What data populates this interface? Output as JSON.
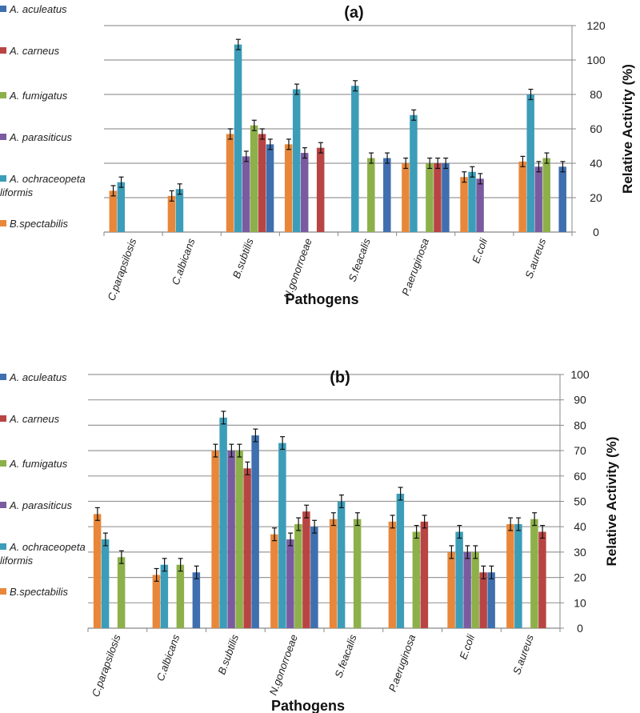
{
  "chart_data": [
    {
      "type": "bar",
      "title": "(a)",
      "xlabel": "Pathogens",
      "ylabel": "Relative Activity (%)",
      "ylim": [
        0,
        120
      ],
      "yticks": [
        0,
        20,
        40,
        60,
        80,
        100,
        120
      ],
      "grid": true,
      "legend_position": "left",
      "error": 3,
      "categories": [
        "C.parapsilosis",
        "C.albicans",
        "B.subtilis",
        "N.gonorroeae",
        "S.feacalis",
        "P.aeruginosa",
        "E.coli",
        "S.aureus"
      ],
      "series": [
        {
          "name": "B.spectabilis",
          "color": "#E8873A",
          "values": [
            24,
            21,
            57,
            51,
            0,
            40,
            32,
            41
          ]
        },
        {
          "name": "A. ochraceopetaliformis",
          "color": "#3C9DB8",
          "values": [
            29,
            25,
            109,
            83,
            85,
            68,
            35,
            80
          ]
        },
        {
          "name": "A. parasiticus",
          "color": "#7A5BA0",
          "values": [
            0,
            0,
            44,
            46,
            0,
            0,
            31,
            38
          ]
        },
        {
          "name": "A. fumigatus",
          "color": "#8DB04A",
          "values": [
            0,
            0,
            62,
            0,
            43,
            40,
            0,
            43
          ]
        },
        {
          "name": "A. carneus",
          "color": "#B84543",
          "values": [
            0,
            0,
            57,
            49,
            0,
            40,
            0,
            0
          ]
        },
        {
          "name": "A. aculeatus",
          "color": "#3F6FAE",
          "values": [
            0,
            0,
            51,
            0,
            43,
            40,
            0,
            38
          ]
        }
      ]
    },
    {
      "type": "bar",
      "title": "(b)",
      "xlabel": "Pathogens",
      "ylabel": "Relative Activity (%)",
      "ylim": [
        0,
        100
      ],
      "yticks": [
        0,
        10,
        20,
        30,
        40,
        50,
        60,
        70,
        80,
        90,
        100
      ],
      "grid": true,
      "legend_position": "left",
      "error": 2.5,
      "categories": [
        "C.parapsilosis",
        "C.albicans",
        "B.subtilis",
        "N.gonorroeae",
        "S.feacalis",
        "P.aeruginosa",
        "E.coli",
        "S.aureus"
      ],
      "series": [
        {
          "name": "B.spectabilis",
          "color": "#E8873A",
          "values": [
            45,
            21,
            70,
            37,
            43,
            42,
            30,
            41
          ]
        },
        {
          "name": "A. ochraceopetaliformis",
          "color": "#3C9DB8",
          "values": [
            35,
            25,
            83,
            73,
            50,
            53,
            38,
            41
          ]
        },
        {
          "name": "A. parasiticus",
          "color": "#7A5BA0",
          "values": [
            0,
            0,
            70,
            35,
            0,
            0,
            30,
            0
          ]
        },
        {
          "name": "A. fumigatus",
          "color": "#8DB04A",
          "values": [
            28,
            25,
            70,
            41,
            43,
            38,
            30,
            43
          ]
        },
        {
          "name": "A. carneus",
          "color": "#B84543",
          "values": [
            0,
            0,
            63,
            46,
            0,
            42,
            22,
            38
          ]
        },
        {
          "name": "A. aculeatus",
          "color": "#3F6FAE",
          "values": [
            0,
            22,
            76,
            40,
            0,
            0,
            22,
            0
          ]
        }
      ]
    }
  ],
  "legend_order": [
    "A. aculeatus",
    "A. carneus",
    "A. fumigatus",
    "A. parasiticus",
    "A. ochraceopetaliformis",
    "B.spectabilis"
  ],
  "legend_labels": [
    "A. aculeatus",
    "A. carneus",
    "A. fumigatus",
    "A. parasiticus",
    "A. ochraceopeta liformis",
    "B.spectabilis"
  ]
}
